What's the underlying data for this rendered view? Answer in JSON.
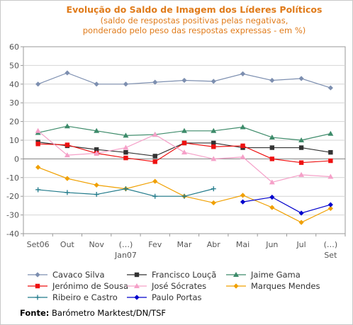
{
  "chart_data": {
    "type": "line",
    "title": "Evolução do Saldo  de Imagem dos Líderes Políticos",
    "subtitle_lines": [
      "(saldo de respostas positivas pelas negativas,",
      "ponderado pelo peso das respostas expressas - em %)"
    ],
    "categories": [
      "Set06",
      "Out",
      "Nov",
      "(…)",
      "Fev",
      "Mar",
      "Abr",
      "Mai",
      "Jun",
      "Jul",
      "(…)"
    ],
    "category_sublabels": [
      "",
      "",
      "",
      "Jan07",
      "",
      "",
      "",
      "",
      "",
      "",
      "Set"
    ],
    "ylim": [
      -40,
      60
    ],
    "yticks": [
      -40,
      -30,
      -20,
      -10,
      0,
      10,
      20,
      30,
      40,
      50,
      60
    ],
    "grid": true,
    "legend_position": "bottom",
    "series": [
      {
        "name": "Cavaco Silva",
        "color": "#7d8fb0",
        "marker": "diamond",
        "values": [
          40,
          46,
          40,
          40,
          41,
          42,
          41.5,
          45.5,
          42,
          43,
          38
        ]
      },
      {
        "name": "Francisco Louçã",
        "color": "#333333",
        "marker": "square",
        "values": [
          9,
          7,
          5,
          3.5,
          1.5,
          8.5,
          8.5,
          6,
          6,
          6,
          3.5
        ]
      },
      {
        "name": "Jaime Gama",
        "color": "#3d8b6a",
        "marker": "triangle",
        "values": [
          14,
          17.5,
          15,
          12.5,
          13,
          15,
          15,
          17,
          11.5,
          10,
          13.5
        ]
      },
      {
        "name": "Jerónimo de Sousa",
        "color": "#ee1111",
        "marker": "square",
        "values": [
          8,
          7.5,
          3,
          0.5,
          -1.5,
          8.5,
          6.5,
          7,
          0,
          -2,
          -1
        ]
      },
      {
        "name": "José Sócrates",
        "color": "#f5a0c8",
        "marker": "triangle",
        "values": [
          15,
          2,
          3,
          6,
          13,
          3.5,
          0,
          1,
          -12.5,
          -8.5,
          -9.5
        ]
      },
      {
        "name": "Marques Mendes",
        "color": "#f0a000",
        "marker": "diamond",
        "values": [
          -4.5,
          -10.5,
          -14,
          -16,
          -12,
          -20,
          -23.5,
          -19.5,
          -26,
          -34,
          -26.5
        ]
      },
      {
        "name": "Ribeiro e Castro",
        "color": "#207a8a",
        "marker": "plus",
        "values": [
          -16.5,
          -18,
          -19,
          -16,
          -20,
          -20,
          -16,
          null,
          null,
          null,
          null
        ]
      },
      {
        "name": "Paulo Portas",
        "color": "#0000cc",
        "marker": "diamond",
        "values": [
          null,
          null,
          null,
          null,
          null,
          null,
          null,
          -23,
          -20.5,
          -29,
          -24.5
        ]
      }
    ]
  },
  "source": {
    "label": "Fonte:",
    "text": " Barómetro Marktest/DN/TSF"
  }
}
